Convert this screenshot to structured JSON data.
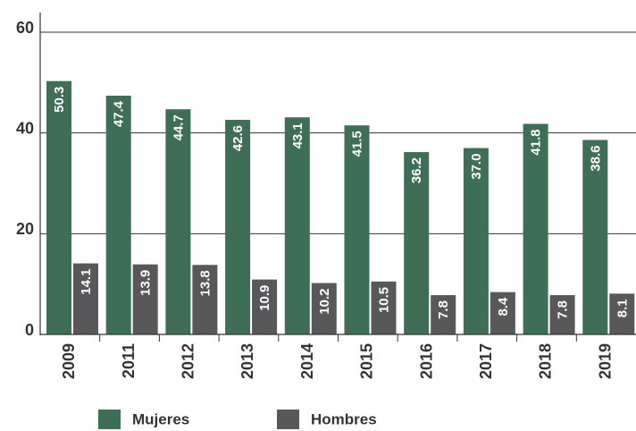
{
  "chart_data": {
    "type": "bar",
    "categories": [
      "2009",
      "2011",
      "2012",
      "2013",
      "2014",
      "2015",
      "2016",
      "2017",
      "2018",
      "2019"
    ],
    "series": [
      {
        "name": "Mujeres",
        "color": "#3f6e57",
        "values": [
          50.3,
          47.4,
          44.7,
          42.6,
          43.1,
          41.5,
          36.2,
          37.0,
          41.8,
          38.6
        ],
        "value_labels": [
          "50.3",
          "47.4",
          "44.7",
          "42.6",
          "43.1",
          "41.5",
          "36.2",
          "37.0",
          "41.8",
          "38.6"
        ]
      },
      {
        "name": "Hombres",
        "color": "#58585a",
        "values": [
          14.1,
          13.9,
          13.8,
          10.9,
          10.2,
          10.5,
          7.8,
          8.4,
          7.8,
          8.1
        ]
      }
    ],
    "ylim": [
      0,
      60
    ],
    "yticks": [
      0,
      20,
      40,
      60
    ],
    "grid": true,
    "legend": "bottom"
  }
}
